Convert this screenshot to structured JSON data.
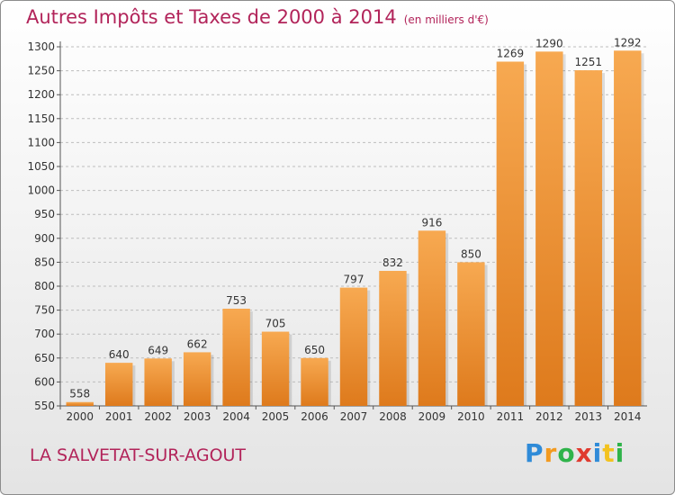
{
  "header": {
    "title": "Autres Impôts et Taxes de 2000 à 2014",
    "unit": "(en milliers d'€)"
  },
  "footer": {
    "location": "LA SALVETAT-SUR-AGOUT",
    "logo_text": "Proxiti"
  },
  "colors": {
    "bar_light": "#f7a951",
    "bar_dark": "#de7a1c",
    "title": "#b2245a",
    "grid": "#bdbdbd"
  },
  "chart_data": {
    "type": "bar",
    "title": "Autres Impôts et Taxes de 2000 à 2014",
    "subtitle": "(en milliers d'€)",
    "xlabel": "",
    "ylabel": "",
    "categories": [
      "2000",
      "2001",
      "2002",
      "2003",
      "2004",
      "2005",
      "2006",
      "2007",
      "2008",
      "2009",
      "2010",
      "2011",
      "2012",
      "2013",
      "2014"
    ],
    "values": [
      558,
      640,
      649,
      662,
      753,
      705,
      650,
      797,
      832,
      916,
      850,
      1269,
      1290,
      1251,
      1292
    ],
    "data_labels": [
      "558",
      "640",
      "649",
      "662",
      "753",
      "705",
      "650",
      "797",
      "832",
      "916",
      "850",
      "1269",
      "1290",
      "1251",
      "1292"
    ],
    "ylim": [
      550,
      1300
    ],
    "yticks": [
      550,
      600,
      650,
      700,
      750,
      800,
      850,
      900,
      950,
      1000,
      1050,
      1100,
      1150,
      1200,
      1250,
      1300
    ],
    "ytick_labels": [
      "550",
      "600",
      "650",
      "700",
      "750",
      "800",
      "850",
      "900",
      "950",
      "1000",
      "1050",
      "1100",
      "1150",
      "1200",
      "1250",
      "1300"
    ],
    "grid": true,
    "legend": "none"
  }
}
